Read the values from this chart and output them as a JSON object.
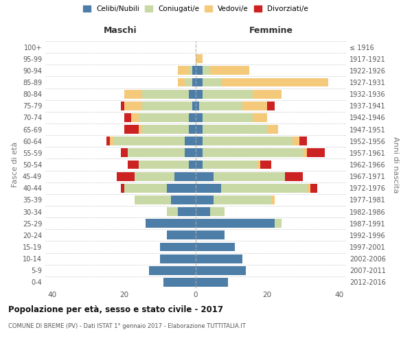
{
  "age_groups": [
    "100+",
    "95-99",
    "90-94",
    "85-89",
    "80-84",
    "75-79",
    "70-74",
    "65-69",
    "60-64",
    "55-59",
    "50-54",
    "45-49",
    "40-44",
    "35-39",
    "30-34",
    "25-29",
    "20-24",
    "15-19",
    "10-14",
    "5-9",
    "0-4"
  ],
  "birth_years": [
    "≤ 1916",
    "1917-1921",
    "1922-1926",
    "1927-1931",
    "1932-1936",
    "1937-1941",
    "1942-1946",
    "1947-1951",
    "1952-1956",
    "1957-1961",
    "1962-1966",
    "1967-1971",
    "1972-1976",
    "1977-1981",
    "1982-1986",
    "1987-1991",
    "1992-1996",
    "1997-2001",
    "2002-2006",
    "2007-2011",
    "2012-2016"
  ],
  "colors": {
    "celibi": "#4d7ea8",
    "coniugati": "#c8d9a5",
    "vedovi": "#f5c97a",
    "divorziati": "#cc2222"
  },
  "maschi": {
    "celibi": [
      0,
      0,
      1,
      1,
      2,
      1,
      2,
      2,
      3,
      3,
      2,
      6,
      8,
      7,
      5,
      14,
      8,
      10,
      10,
      13,
      9
    ],
    "coniugati": [
      0,
      0,
      1,
      2,
      13,
      14,
      14,
      13,
      20,
      16,
      14,
      11,
      12,
      10,
      3,
      0,
      0,
      0,
      0,
      0,
      0
    ],
    "vedovi": [
      0,
      0,
      3,
      2,
      5,
      5,
      2,
      1,
      1,
      0,
      0,
      0,
      0,
      0,
      0,
      0,
      0,
      0,
      0,
      0,
      0
    ],
    "divorziati": [
      0,
      0,
      0,
      0,
      0,
      1,
      2,
      4,
      1,
      2,
      3,
      5,
      1,
      0,
      0,
      0,
      0,
      0,
      0,
      0,
      0
    ]
  },
  "femmine": {
    "celibi": [
      0,
      0,
      2,
      2,
      2,
      1,
      2,
      2,
      2,
      2,
      2,
      5,
      7,
      5,
      4,
      22,
      8,
      11,
      13,
      14,
      9
    ],
    "coniugati": [
      0,
      0,
      2,
      5,
      14,
      12,
      14,
      18,
      25,
      28,
      15,
      20,
      24,
      16,
      4,
      2,
      0,
      0,
      0,
      0,
      0
    ],
    "vedovi": [
      0,
      2,
      11,
      30,
      8,
      7,
      4,
      3,
      2,
      1,
      1,
      0,
      1,
      1,
      0,
      0,
      0,
      0,
      0,
      0,
      0
    ],
    "divorziati": [
      0,
      0,
      0,
      0,
      0,
      2,
      0,
      0,
      2,
      5,
      3,
      5,
      2,
      0,
      0,
      0,
      0,
      0,
      0,
      0,
      0
    ]
  },
  "title": "Popolazione per età, sesso e stato civile - 2017",
  "subtitle": "COMUNE DI BREME (PV) - Dati ISTAT 1° gennaio 2017 - Elaborazione TUTTITALIA.IT",
  "ylabel_left": "Fasce di età",
  "ylabel_right": "Anni di nascita",
  "xlim": [
    -42,
    42
  ],
  "xticks": [
    -40,
    -20,
    0,
    20,
    40
  ],
  "legend_labels": [
    "Celibi/Nubili",
    "Coniugati/e",
    "Vedovi/e",
    "Divorziati/e"
  ],
  "maschi_label": "Maschi",
  "femmine_label": "Femmine",
  "bg_color": "#ffffff",
  "grid_color": "#cccccc"
}
